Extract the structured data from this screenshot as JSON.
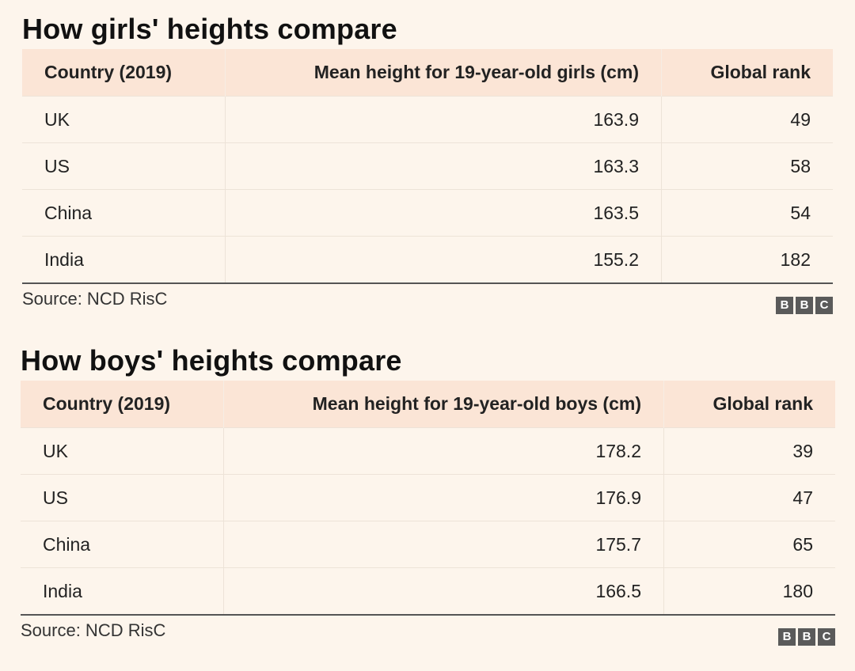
{
  "chart_data": [
    {
      "type": "table",
      "title": "How girls' heights compare",
      "columns": [
        "Country (2019)",
        "Mean height for 19-year-old girls (cm)",
        "Global rank"
      ],
      "rows": [
        {
          "country": "UK",
          "height": "163.9",
          "rank": "49"
        },
        {
          "country": "US",
          "height": "163.3",
          "rank": "58"
        },
        {
          "country": "China",
          "height": "163.5",
          "rank": "54"
        },
        {
          "country": "India",
          "height": "155.2",
          "rank": "182"
        }
      ],
      "source": "Source: NCD RisC",
      "logo": [
        "B",
        "B",
        "C"
      ]
    },
    {
      "type": "table",
      "title": "How boys' heights compare",
      "columns": [
        "Country (2019)",
        "Mean height for 19-year-old boys (cm)",
        "Global rank"
      ],
      "rows": [
        {
          "country": "UK",
          "height": "178.2",
          "rank": "39"
        },
        {
          "country": "US",
          "height": "176.9",
          "rank": "47"
        },
        {
          "country": "China",
          "height": "175.7",
          "rank": "65"
        },
        {
          "country": "India",
          "height": "166.5",
          "rank": "180"
        }
      ],
      "source": "Source: NCD RisC",
      "logo": [
        "B",
        "B",
        "C"
      ]
    }
  ],
  "colors": {
    "background": "#fdf5ec",
    "header_background": "#fbe5d6",
    "logo_box": "#5a5a5a"
  }
}
